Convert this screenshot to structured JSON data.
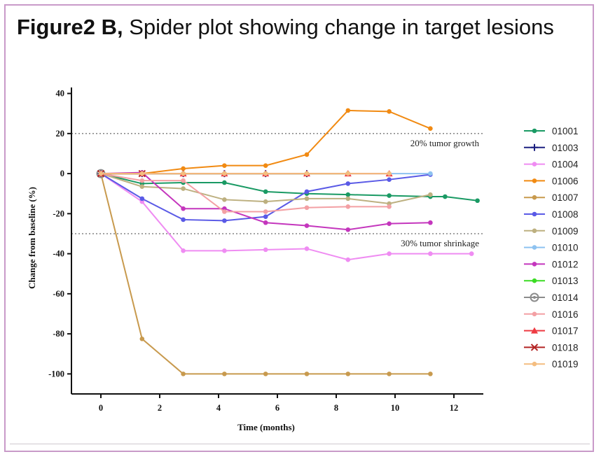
{
  "caption": {
    "bold": "Figure2 B,",
    "text": "Spider plot showing change in target lesions"
  },
  "chart_data": {
    "type": "line",
    "title": "",
    "xlabel": "Time (months)",
    "ylabel": "Change from baseline (%)",
    "xlim": [
      -1,
      13
    ],
    "ylim": [
      -110,
      43
    ],
    "xticks": [
      0,
      2,
      4,
      6,
      8,
      10,
      12
    ],
    "yticks": [
      40,
      20,
      0,
      -20,
      -40,
      -60,
      -80,
      -100
    ],
    "reference_lines": [
      {
        "y": 20,
        "label": "20% tumor growth",
        "style": "dotted"
      },
      {
        "y": -30,
        "label": "30% tumor shrinkage",
        "style": "dotted"
      }
    ],
    "legend_position": "right",
    "grid": false,
    "series": [
      {
        "name": "01001",
        "color": "#1a9a64",
        "marker": "circle",
        "x": [
          0,
          1.4,
          2.8,
          4.2,
          5.6,
          7.0,
          8.4,
          9.8,
          11.2,
          11.7,
          12.8
        ],
        "y": [
          0,
          -5,
          -4.5,
          -4.5,
          -9,
          -10,
          -10.5,
          -11,
          -11.5,
          -11.5,
          -13.5
        ]
      },
      {
        "name": "01003",
        "color": "#1c2080",
        "marker": "plus",
        "x": [
          0,
          1.4,
          2.8,
          4.2,
          5.6,
          7.0
        ],
        "y": [
          0,
          0,
          0,
          0,
          0,
          0
        ]
      },
      {
        "name": "01004",
        "color": "#ef8cf2",
        "marker": "circle",
        "x": [
          0,
          1.4,
          2.8,
          4.2,
          5.6,
          7.0,
          8.4,
          9.8,
          11.2,
          12.6
        ],
        "y": [
          0,
          -14,
          -38.5,
          -38.5,
          -38,
          -37.5,
          -43,
          -40,
          -40,
          -40
        ]
      },
      {
        "name": "01006",
        "color": "#f18a12",
        "marker": "circle",
        "x": [
          0,
          1.4,
          2.8,
          4.2,
          5.6,
          7.0,
          8.4,
          9.8,
          11.2
        ],
        "y": [
          0,
          0,
          2.5,
          4,
          4,
          9.5,
          31.5,
          31,
          22.5
        ]
      },
      {
        "name": "01007",
        "color": "#c89a4e",
        "marker": "circle",
        "x": [
          0,
          1.4,
          2.8,
          4.2,
          5.6,
          7.0,
          8.4,
          9.8,
          11.2
        ],
        "y": [
          0,
          -82.5,
          -100,
          -100,
          -100,
          -100,
          -100,
          -100,
          -100
        ]
      },
      {
        "name": "01008",
        "color": "#5a5ae6",
        "marker": "circle",
        "x": [
          0,
          1.4,
          2.8,
          4.2,
          5.6,
          7.0,
          8.4,
          9.8,
          11.2
        ],
        "y": [
          0,
          -12.5,
          -23,
          -23.5,
          -21.5,
          -9,
          -5,
          -3,
          -0.5
        ]
      },
      {
        "name": "01009",
        "color": "#bdb080",
        "marker": "circle",
        "x": [
          0,
          1.4,
          2.8,
          4.2,
          5.6,
          7.0,
          8.4,
          9.8,
          11.2
        ],
        "y": [
          0,
          -6.5,
          -7.5,
          -13,
          -14,
          -12.5,
          -12.5,
          -15,
          -10.5
        ]
      },
      {
        "name": "01010",
        "color": "#8ec2f0",
        "marker": "circle",
        "x": [
          0,
          1.4,
          2.8,
          4.2,
          5.6,
          7.0,
          8.4,
          9.8,
          11.2
        ],
        "y": [
          0,
          0,
          0,
          0,
          0,
          0,
          0,
          0,
          0
        ]
      },
      {
        "name": "01012",
        "color": "#c436bd",
        "marker": "circle",
        "x": [
          0,
          1.4,
          2.8,
          4.2,
          5.6,
          7.0,
          8.4,
          9.8,
          11.2
        ],
        "y": [
          0,
          0.5,
          -17.5,
          -17.5,
          -24.5,
          -26,
          -28,
          -25,
          -24.5
        ]
      },
      {
        "name": "01013",
        "color": "#3bdc24",
        "marker": "circle",
        "x": [
          0,
          1.4,
          2.8,
          4.2,
          5.6,
          7.0,
          8.4
        ],
        "y": [
          0,
          0,
          0,
          0,
          0,
          0,
          0
        ]
      },
      {
        "name": "01014",
        "color": "#8c8c8c",
        "marker": "open-circle",
        "x": [
          0
        ],
        "y": [
          0
        ]
      },
      {
        "name": "01016",
        "color": "#f3a0a4",
        "marker": "circle",
        "x": [
          0,
          1.4,
          2.8,
          4.2,
          5.6,
          7.0,
          8.4,
          9.8
        ],
        "y": [
          0,
          -3.5,
          -3.5,
          -19,
          -19,
          -17,
          -16.5,
          -16.5
        ]
      },
      {
        "name": "01017",
        "color": "#ee3a42",
        "marker": "triangle",
        "x": [
          0,
          1.4,
          2.8,
          4.2,
          5.6,
          7.0,
          8.4,
          9.8
        ],
        "y": [
          0,
          0,
          0,
          0,
          0,
          0,
          0,
          0
        ]
      },
      {
        "name": "01018",
        "color": "#b32424",
        "marker": "x",
        "x": [
          0,
          1.4
        ],
        "y": [
          0,
          0
        ]
      },
      {
        "name": "01019",
        "color": "#f4bd80",
        "marker": "circle",
        "x": [
          0,
          1.4,
          2.8,
          4.2,
          5.6,
          7.0,
          8.4,
          9.8
        ],
        "y": [
          0,
          0,
          0,
          0,
          0,
          0,
          0,
          0
        ]
      }
    ]
  }
}
